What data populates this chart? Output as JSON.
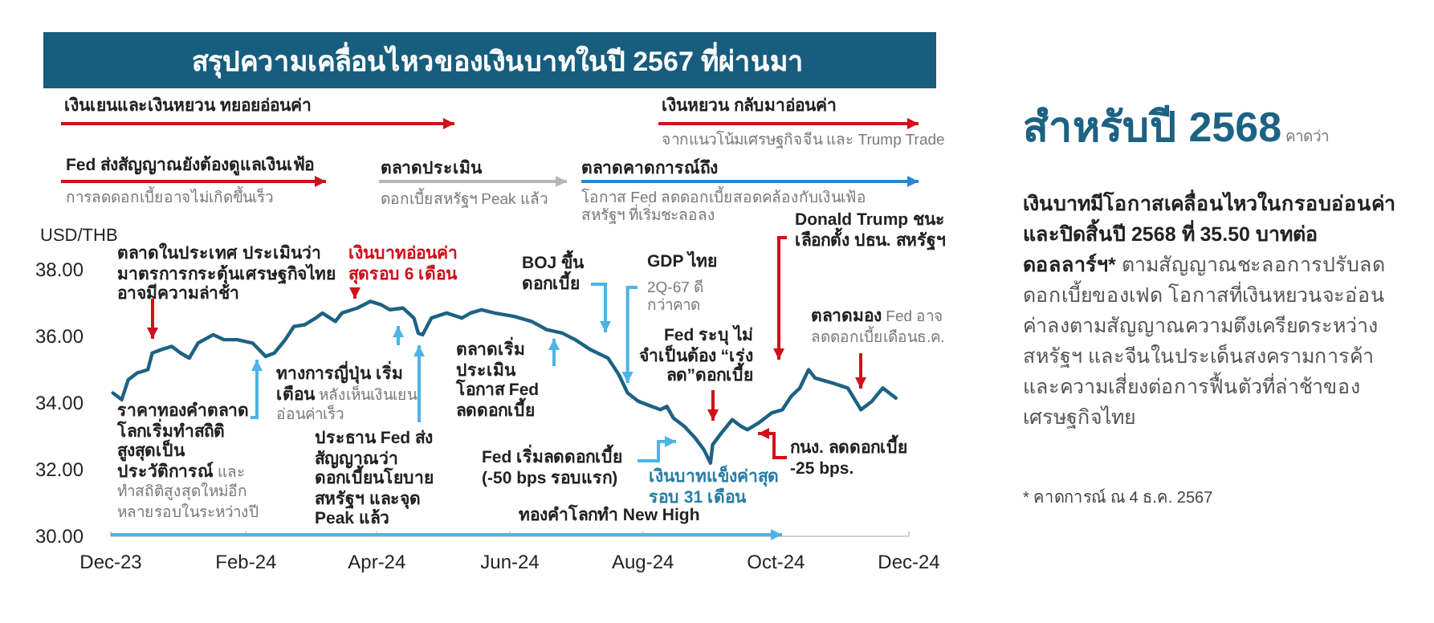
{
  "chart_data": {
    "type": "line",
    "title": "สรุปความเคลื่อนไหวของเงินบาทในปี 2567 ที่ผ่านมา",
    "ylabel": "USD/THB",
    "xlim": [
      "2023-12-01",
      "2024-12-01"
    ],
    "ylim": [
      30,
      38
    ],
    "xticks": [
      {
        "value": "2023-12-01",
        "label": "Dec-23"
      },
      {
        "value": "2024-02-01",
        "label": "Feb-24"
      },
      {
        "value": "2024-04-01",
        "label": "Apr-24"
      },
      {
        "value": "2024-06-01",
        "label": "Jun-24"
      },
      {
        "value": "2024-08-01",
        "label": "Aug-24"
      },
      {
        "value": "2024-10-01",
        "label": "Oct-24"
      },
      {
        "value": "2024-12-01",
        "label": "Dec-24"
      }
    ],
    "yticks": [
      {
        "value": 30,
        "label": "30.00"
      },
      {
        "value": 32,
        "label": "32.00"
      },
      {
        "value": 34,
        "label": "34.00"
      },
      {
        "value": 36,
        "label": "36.00"
      },
      {
        "value": 38,
        "label": "38.00"
      }
    ],
    "x": [
      "2023-12-02",
      "2023-12-06",
      "2023-12-09",
      "2023-12-13",
      "2023-12-18",
      "2023-12-20",
      "2023-12-24",
      "2023-12-29",
      "2024-01-02",
      "2024-01-06",
      "2024-01-10",
      "2024-01-17",
      "2024-01-22",
      "2024-01-28",
      "2024-02-04",
      "2024-02-10",
      "2024-02-14",
      "2024-02-19",
      "2024-02-23",
      "2024-02-28",
      "2024-03-04",
      "2024-03-07",
      "2024-03-13",
      "2024-03-16",
      "2024-03-23",
      "2024-03-29",
      "2024-04-03",
      "2024-04-07",
      "2024-04-13",
      "2024-04-18",
      "2024-04-20",
      "2024-04-22",
      "2024-04-26",
      "2024-05-03",
      "2024-05-10",
      "2024-05-14",
      "2024-05-19",
      "2024-05-25",
      "2024-06-03",
      "2024-06-11",
      "2024-06-18",
      "2024-06-25",
      "2024-07-01",
      "2024-07-08",
      "2024-07-16",
      "2024-07-21",
      "2024-07-25",
      "2024-07-30",
      "2024-08-03",
      "2024-08-09",
      "2024-08-12",
      "2024-08-15",
      "2024-08-20",
      "2024-08-25",
      "2024-08-29",
      "2024-09-01",
      "2024-09-02",
      "2024-09-06",
      "2024-09-11",
      "2024-09-15",
      "2024-09-18",
      "2024-09-23",
      "2024-09-29",
      "2024-10-04",
      "2024-10-08",
      "2024-10-12",
      "2024-10-16",
      "2024-10-19",
      "2024-10-27",
      "2024-11-03",
      "2024-11-09",
      "2024-11-14",
      "2024-11-19",
      "2024-11-25"
    ],
    "series": [
      {
        "color": "#1d6283",
        "values": [
          34.3,
          34.1,
          34.7,
          34.9,
          35.0,
          35.5,
          35.6,
          35.7,
          35.5,
          35.35,
          35.8,
          36.05,
          35.9,
          35.9,
          35.8,
          35.4,
          35.5,
          35.9,
          36.3,
          36.35,
          36.55,
          36.7,
          36.45,
          36.7,
          36.85,
          37.05,
          36.95,
          36.8,
          36.85,
          36.55,
          36.1,
          36.05,
          36.55,
          36.7,
          36.55,
          36.7,
          36.8,
          36.7,
          36.6,
          36.45,
          36.2,
          36.1,
          35.9,
          35.6,
          35.35,
          34.85,
          34.3,
          34.05,
          33.95,
          33.8,
          33.9,
          33.55,
          33.3,
          32.95,
          32.6,
          32.2,
          32.75,
          33.1,
          33.5,
          33.3,
          33.2,
          33.4,
          33.7,
          33.8,
          34.2,
          34.45,
          35.0,
          34.75,
          34.6,
          34.45,
          33.8,
          34.05,
          34.45,
          34.15
        ]
      }
    ],
    "annotations": [
      "เงินเยนและเงินหยวน ทยอยอ่อนค่า",
      "เงินหยวน กลับมาอ่อนค่า",
      "จากแนวโน้มเศรษฐกิจจีน และ Trump Trade",
      "Fed ส่งสัญญาณยังต้องดูแลเงินเฟ้อ",
      "การลดดอกเบี้ยอาจไม่เกิดขึ้นเร็ว",
      "ตลาดประเมิน",
      "ดอกเบี้ยสหรัฐฯ Peak แล้ว",
      "ตลาดคาดการณ์ถึง",
      "โอกาส Fed ลดดอกเบี้ยสอดคล้องกับเงินเฟ้อสหรัฐฯ ที่เริ่มชะลอลง",
      "ตลาดในประเทศ ประเมินว่ามาตรการกระตุ้นเศรษฐกิจไทย อาจมีความล่าช้า",
      "เงินบาทอ่อนค่าสุดรอบ 6 เดือน",
      "ราคาทองคำตลาดโลกเริ่มทำสถิติสูงสุดเป็นประวัติการณ์",
      "และทำสถิติสูงสุดใหม่อีกหลายรอบในระหว่างปี",
      "ทางการญี่ปุ่น เริ่มเตือน",
      "หลังเห็นเงินเยนอ่อนค่าเร็ว",
      "ประธาน Fed ส่งสัญญาณว่า ดอกเบี้ยนโยบายสหรัฐฯ และจุด Peak แล้ว",
      "ตลาดเริ่มประเมินโอกาส Fed ลดดอกเบี้ย",
      "BOJ ขึ้นดอกเบี้ย",
      {
        "text": "GDP ไทย",
        "x": "2024-07-25",
        "y": 34.6
      },
      "2Q-67 ดีกว่าคาด",
      "Fed ระบุ ไม่จำเป็นต้อง “เร่งลด”ดอกเบี้ย",
      "Donald Trump ชนะเลือกตั้ง ปธน. สหรัฐฯ",
      "ตลาดมอง",
      "Fed อาจลดดอกเบี้ยเดือนธ.ค.",
      "Fed เริ่มลดดอกเบี้ย (-50 bps รอบแรก)",
      "เงินบาทแข็งค่าสุดรอบ 31 เดือน",
      "กนง. ลดดอกเบี้ย -25 bps.",
      "ทองคำโลกทำ New High",
      "สำหรับปี 2568",
      "คาดว่า",
      "เงินบาทมีโอกาสเคลื่อนไหวในกรอบอ่อนค่า และปิดสิ้นปี 2568 ที่ 35.50 บาทต่อดอลลาร์ฯ*",
      "ตามสัญญาณชะลอการปรับลดดอกเบี้ยของเฟด โอกาสที่เงินหยวนจะอ่อนค่าลงตามสัญญาณความตึงเครียดระหว่างสหรัฐฯ และจีนในประเด็นสงครามการค้า และความเสี่ยงต่อการฟื้นตัวที่ล่าช้าของเศรษฐกิจไทย",
      "* คาดการณ์ ณ 4 ธ.ค. 2567"
    ]
  }
}
